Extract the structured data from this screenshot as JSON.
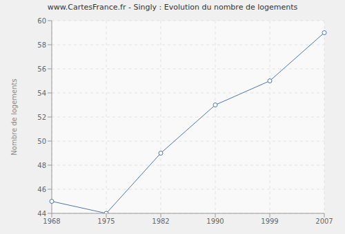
{
  "chart_data": {
    "type": "line",
    "title": "www.CartesFrance.fr - Singly : Evolution du nombre de logements",
    "y_label": "Nombre de logements",
    "categories": [
      "1968",
      "1975",
      "1982",
      "1990",
      "1999",
      "2007"
    ],
    "values": [
      45,
      44,
      49,
      53,
      55,
      59
    ],
    "color": "#4a76a8",
    "marker": "circle",
    "ylim": [
      44,
      60
    ],
    "yticks": [
      44,
      46,
      48,
      50,
      52,
      54,
      56,
      58,
      60
    ],
    "grid": true
  }
}
